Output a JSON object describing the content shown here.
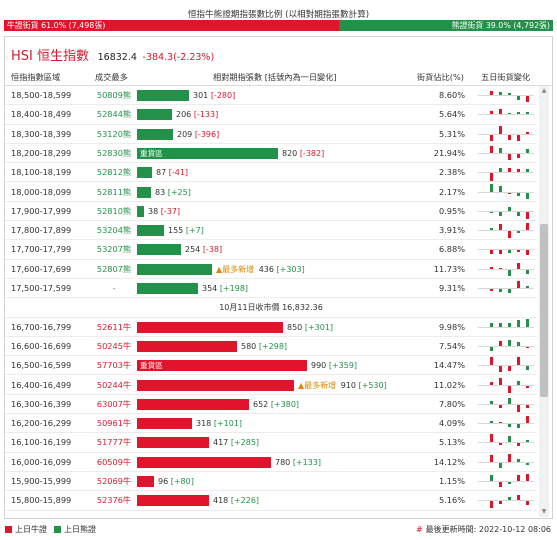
{
  "title": "恒指牛熊證期指張數比例 (以相對期指張數計算)",
  "ratio": {
    "bull_label": "牛證街貨 61.0% (7,498張)",
    "bear_label": "熊證街貨 39.0% (4,792張)",
    "bull_share": 0.61
  },
  "index": {
    "code": "HSI 恒生指數",
    "price": "16832.4",
    "change": "-384.3(-2.23%)"
  },
  "headers": {
    "range": "恒指指數區域",
    "code": "成交最多",
    "contracts": "相對期指張數 [括號內為一日變化]",
    "pct": "街貨佔比(%)",
    "trend": "五日街貨變化"
  },
  "bear_rows": [
    {
      "range": "18,500-18,599",
      "code": "50809熊",
      "count": 301,
      "change": "[-280]",
      "pct": "8.60%"
    },
    {
      "range": "18,400-18,499",
      "code": "52844熊",
      "count": 206,
      "change": "[-133]",
      "pct": "5.64%"
    },
    {
      "range": "18,300-18,399",
      "code": "53120熊",
      "count": 209,
      "change": "[-396]",
      "pct": "5.31%"
    },
    {
      "range": "18,200-18,299",
      "code": "52830熊",
      "count": 820,
      "change": "[-382]",
      "pct": "21.94%",
      "tag": "重貨區"
    },
    {
      "range": "18,100-18,199",
      "code": "52812熊",
      "count": 87,
      "change": "[-41]",
      "pct": "2.38%"
    },
    {
      "range": "18,000-18,099",
      "code": "52811熊",
      "count": 83,
      "change": "[+25]",
      "pct": "2.17%"
    },
    {
      "range": "17,900-17,999",
      "code": "52810熊",
      "count": 38,
      "change": "[-37]",
      "pct": "0.95%"
    },
    {
      "range": "17,800-17,899",
      "code": "53204熊",
      "count": 155,
      "change": "[+7]",
      "pct": "3.91%"
    },
    {
      "range": "17,700-17,799",
      "code": "53207熊",
      "count": 254,
      "change": "[-38]",
      "pct": "6.88%"
    },
    {
      "range": "17,600-17,699",
      "code": "52807熊",
      "count": 436,
      "change": "[+303]",
      "pct": "11.73%",
      "new": "▲最多新增"
    },
    {
      "range": "17,500-17,599",
      "code": "-",
      "count": 354,
      "change": "[+198]",
      "pct": "9.31%"
    }
  ],
  "close_label": "10月11日收市價 16,832.36",
  "bull_rows": [
    {
      "range": "16,700-16,799",
      "code": "52611牛",
      "count": 850,
      "change": "[+301]",
      "pct": "9.98%"
    },
    {
      "range": "16,600-16,699",
      "code": "50245牛",
      "count": 580,
      "change": "[+298]",
      "pct": "7.54%"
    },
    {
      "range": "16,500-16,599",
      "code": "57703牛",
      "count": 990,
      "change": "[+359]",
      "pct": "14.47%",
      "tag": "重貨區"
    },
    {
      "range": "16,400-16,499",
      "code": "50244牛",
      "count": 910,
      "change": "[+530]",
      "pct": "11.02%",
      "new": "▲最多新增"
    },
    {
      "range": "16,300-16,399",
      "code": "63007牛",
      "count": 652,
      "change": "[+380]",
      "pct": "7.80%"
    },
    {
      "range": "16,200-16,299",
      "code": "50961牛",
      "count": 318,
      "change": "[+101]",
      "pct": "4.09%"
    },
    {
      "range": "16,100-16,199",
      "code": "51777牛",
      "count": 417,
      "change": "[+285]",
      "pct": "5.13%"
    },
    {
      "range": "16,000-16,099",
      "code": "60509牛",
      "count": 780,
      "change": "[+133]",
      "pct": "14.12%"
    },
    {
      "range": "15,900-15,999",
      "code": "52069牛",
      "count": 96,
      "change": "[+80]",
      "pct": "1.15%"
    },
    {
      "range": "15,800-15,899",
      "code": "52376牛",
      "count": 418,
      "change": "[+226]",
      "pct": "5.16%"
    }
  ],
  "legend": {
    "bull": "上日牛證",
    "bear": "上日熊證"
  },
  "update": {
    "hash": "#",
    "text": "最後更新時間: 2022-10-12 08:06"
  },
  "colors": {
    "bull": "#e0142d",
    "bear": "#23914a",
    "bull_text": "#d61b30",
    "new_tag": "#e08500"
  },
  "icons": {
    "scroll_up": "triangle-up-icon",
    "scroll_down": "triangle-down-icon"
  }
}
